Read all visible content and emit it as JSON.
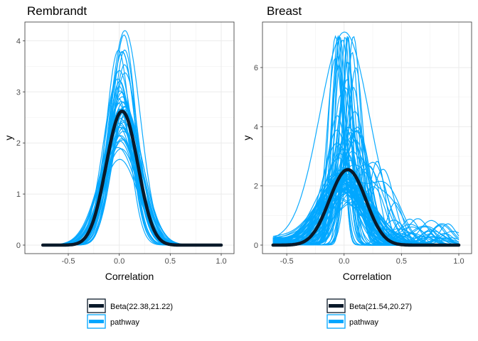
{
  "chart_data": [
    {
      "type": "line",
      "title": "Rembrandt",
      "xlabel": "Correlation",
      "ylabel": "y",
      "xlim": [
        -0.8,
        1.0
      ],
      "ylim": [
        0,
        4.2
      ],
      "x_ticks": [
        -0.5,
        0.0,
        0.5,
        1.0
      ],
      "x_tick_labels": [
        "-0.5",
        "0.0",
        "0.5",
        "1.0"
      ],
      "y_ticks": [
        0,
        1,
        2,
        3,
        4
      ],
      "y_tick_labels": [
        "0",
        "1",
        "2",
        "3",
        "4"
      ],
      "grid": true,
      "legend_position": "bottom",
      "series": [
        {
          "name": "Beta(22.38,21.22)",
          "kind": "beta_density",
          "alpha": 22.38,
          "beta": 21.22,
          "x_range": [
            -0.75,
            1.0
          ],
          "color": "#0a1a2a",
          "peak": 2.62
        },
        {
          "name": "pathway",
          "kind": "density_bundle",
          "color": "#00a6ff",
          "x_range": [
            -0.75,
            1.0
          ],
          "count": 45,
          "center_range": [
            -0.02,
            0.06
          ],
          "sd_range": [
            0.11,
            0.19
          ],
          "max_peak": 4.2
        }
      ]
    },
    {
      "type": "line",
      "title": "Breast",
      "xlabel": "Correlation",
      "ylabel": "y",
      "xlim": [
        -0.6,
        1.0
      ],
      "ylim": [
        0,
        7.25
      ],
      "x_ticks": [
        -0.5,
        0.0,
        0.5,
        1.0
      ],
      "x_tick_labels": [
        "-0.5",
        "0.0",
        "0.5",
        "1.0"
      ],
      "y_ticks": [
        0,
        2,
        4,
        6
      ],
      "y_tick_labels": [
        "0",
        "2",
        "4",
        "6"
      ],
      "grid": true,
      "legend_position": "bottom",
      "series": [
        {
          "name": "Beta(21.54,20.27)",
          "kind": "beta_density",
          "alpha": 21.54,
          "beta": 20.27,
          "x_range": [
            -0.62,
            1.0
          ],
          "color": "#0a1a2a",
          "peak": 2.55
        },
        {
          "name": "pathway",
          "kind": "density_bundle",
          "color": "#00a6ff",
          "x_range": [
            -0.62,
            1.0
          ],
          "count": 90,
          "center_range": [
            -0.08,
            0.12
          ],
          "sd_range": [
            0.04,
            0.22
          ],
          "max_peak": 7.2,
          "secondary_center_range": [
            0.2,
            0.95
          ]
        }
      ]
    }
  ]
}
